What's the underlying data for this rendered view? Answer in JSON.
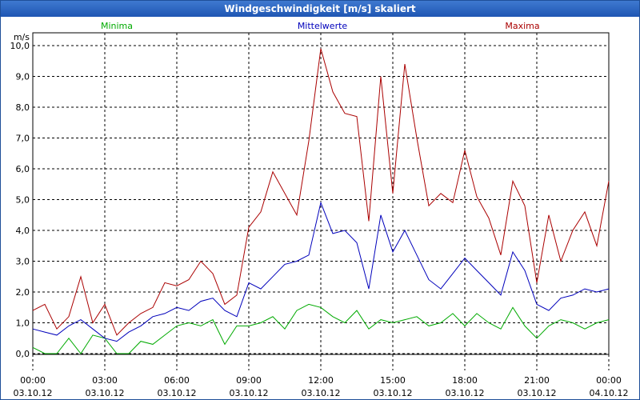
{
  "window": {
    "title": "Windgeschwindigkeit [m/s] skaliert"
  },
  "chart_data": {
    "type": "line",
    "title": "Windgeschwindigkeit [m/s] skaliert",
    "ylabel": "m/s",
    "xlabel": "",
    "ylim": [
      -0.5,
      10.5
    ],
    "xlim": [
      0,
      24
    ],
    "grid": true,
    "yticks": [
      "0,0",
      "1,0",
      "2,0",
      "3,0",
      "4,0",
      "5,0",
      "6,0",
      "7,0",
      "8,0",
      "9,0",
      "10,0"
    ],
    "xticks": [
      {
        "time": "00:00",
        "date": "03.10.12"
      },
      {
        "time": "03:00",
        "date": "03.10.12"
      },
      {
        "time": "06:00",
        "date": "03.10.12"
      },
      {
        "time": "09:00",
        "date": "03.10.12"
      },
      {
        "time": "12:00",
        "date": "03.10.12"
      },
      {
        "time": "15:00",
        "date": "03.10.12"
      },
      {
        "time": "18:00",
        "date": "03.10.12"
      },
      {
        "time": "21:00",
        "date": "03.10.12"
      },
      {
        "time": "00:00",
        "date": "04.10.12"
      }
    ],
    "legend": [
      "Minima",
      "Mittelwerte",
      "Maxima"
    ],
    "series": [
      {
        "name": "Minima",
        "color": "#00aa00",
        "x": [
          0,
          0.5,
          1,
          1.5,
          2,
          2.5,
          3,
          3.5,
          4,
          4.5,
          5,
          5.5,
          6,
          6.5,
          7,
          7.5,
          8,
          8.5,
          9,
          9.5,
          10,
          10.5,
          11,
          11.5,
          12,
          12.5,
          13,
          13.5,
          14,
          14.5,
          15,
          15.5,
          16,
          16.5,
          17,
          17.5,
          18,
          18.5,
          19,
          19.5,
          20,
          20.5,
          21,
          21.5,
          22,
          22.5,
          23,
          23.5,
          24
        ],
        "values": [
          0.2,
          0.0,
          0.0,
          0.5,
          0.0,
          0.6,
          0.5,
          0.0,
          0.0,
          0.4,
          0.3,
          0.6,
          0.9,
          1.0,
          0.9,
          1.1,
          0.3,
          0.9,
          0.9,
          1.0,
          1.2,
          0.8,
          1.4,
          1.6,
          1.5,
          1.2,
          1.0,
          1.4,
          0.8,
          1.1,
          1.0,
          1.1,
          1.2,
          0.9,
          1.0,
          1.3,
          0.9,
          1.3,
          1.0,
          0.8,
          1.5,
          0.9,
          0.5,
          0.9,
          1.1,
          1.0,
          0.8,
          1.0,
          1.1
        ]
      },
      {
        "name": "Mittelwerte",
        "color": "#0000bb",
        "x": [
          0,
          0.5,
          1,
          1.5,
          2,
          2.5,
          3,
          3.5,
          4,
          4.5,
          5,
          5.5,
          6,
          6.5,
          7,
          7.5,
          8,
          8.5,
          9,
          9.5,
          10,
          10.5,
          11,
          11.5,
          12,
          12.5,
          13,
          13.5,
          14,
          14.5,
          15,
          15.5,
          16,
          16.5,
          17,
          17.5,
          18,
          18.5,
          19,
          19.5,
          20,
          20.5,
          21,
          21.5,
          22,
          22.5,
          23,
          23.5,
          24
        ],
        "values": [
          0.8,
          0.7,
          0.6,
          0.9,
          1.1,
          0.8,
          0.5,
          0.4,
          0.7,
          0.9,
          1.2,
          1.3,
          1.5,
          1.4,
          1.7,
          1.8,
          1.4,
          1.2,
          2.3,
          2.1,
          2.5,
          2.9,
          3.0,
          3.2,
          4.9,
          3.9,
          4.0,
          3.6,
          2.1,
          4.5,
          3.3,
          4.0,
          3.2,
          2.4,
          2.1,
          2.6,
          3.1,
          2.7,
          2.3,
          1.9,
          3.3,
          2.7,
          1.6,
          1.4,
          1.8,
          1.9,
          2.1,
          2.0,
          2.1
        ]
      },
      {
        "name": "Maxima",
        "color": "#aa0000",
        "x": [
          0,
          0.5,
          1,
          1.5,
          2,
          2.5,
          3,
          3.5,
          4,
          4.5,
          5,
          5.5,
          6,
          6.5,
          7,
          7.5,
          8,
          8.5,
          9,
          9.5,
          10,
          10.5,
          11,
          11.5,
          12,
          12.5,
          13,
          13.5,
          14,
          14.5,
          15,
          15.5,
          16,
          16.5,
          17,
          17.5,
          18,
          18.5,
          19,
          19.5,
          20,
          20.5,
          21,
          21.5,
          22,
          22.5,
          23,
          23.5,
          24
        ],
        "values": [
          1.4,
          1.6,
          0.8,
          1.2,
          2.5,
          1.0,
          1.6,
          0.6,
          1.0,
          1.3,
          1.5,
          2.3,
          2.2,
          2.4,
          3.0,
          2.6,
          1.6,
          1.9,
          4.1,
          4.6,
          5.9,
          5.2,
          4.5,
          6.9,
          9.9,
          8.5,
          7.8,
          7.7,
          4.3,
          9.0,
          5.2,
          9.4,
          7.0,
          4.8,
          5.2,
          4.9,
          6.6,
          5.1,
          4.4,
          3.2,
          5.6,
          4.8,
          2.3,
          4.5,
          3.0,
          4.0,
          4.6,
          3.5,
          5.6
        ]
      }
    ]
  }
}
